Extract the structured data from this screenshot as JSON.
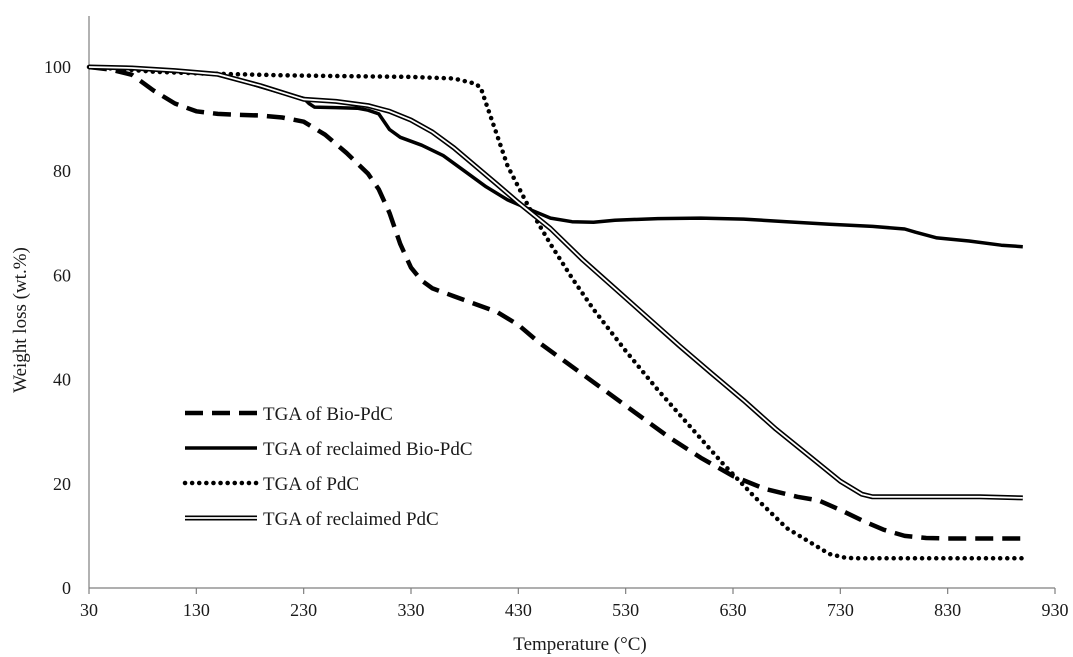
{
  "chart_data": {
    "type": "line",
    "title": "",
    "xlabel": "Temperature (°C)",
    "ylabel": "Weight loss (wt.%)",
    "xlim": [
      30,
      930
    ],
    "ylim": [
      0,
      110
    ],
    "x_ticks": [
      30,
      130,
      230,
      330,
      430,
      530,
      630,
      730,
      830,
      930
    ],
    "y_ticks": [
      0,
      20,
      40,
      60,
      80,
      100
    ],
    "x_tick_labels": [
      "30",
      "130",
      "230",
      "330",
      "430",
      "530",
      "630",
      "730",
      "830",
      "930"
    ],
    "y_tick_labels": [
      "0",
      "20",
      "40",
      "60",
      "80",
      "100"
    ],
    "grid": false,
    "legend_position": "lower-left",
    "series": [
      {
        "name": "TGA of Bio-PdC",
        "style": "dashed",
        "color": "#000000",
        "x": [
          30,
          50,
          70,
          90,
          110,
          130,
          150,
          170,
          190,
          210,
          230,
          250,
          270,
          290,
          300,
          310,
          320,
          330,
          340,
          350,
          370,
          390,
          410,
          430,
          450,
          480,
          510,
          540,
          570,
          600,
          630,
          660,
          690,
          710,
          730,
          750,
          770,
          790,
          810,
          830,
          860,
          900
        ],
        "y": [
          100,
          99.5,
          98.5,
          95.5,
          93,
          91.5,
          91,
          90.8,
          90.7,
          90.3,
          89.5,
          87,
          83.5,
          79.5,
          76.5,
          72,
          66,
          61.5,
          59,
          57.5,
          56,
          54.5,
          53,
          50.5,
          47,
          42.5,
          38,
          33.5,
          29,
          25,
          21.5,
          19,
          17.5,
          16.8,
          15,
          13,
          11.2,
          10,
          9.6,
          9.5,
          9.5,
          9.5
        ]
      },
      {
        "name": "TGA of reclaimed  Bio-PdC",
        "style": "solid",
        "color": "#000000",
        "x": [
          30,
          70,
          110,
          150,
          170,
          190,
          210,
          230,
          235,
          240,
          260,
          280,
          290,
          300,
          305,
          310,
          320,
          340,
          360,
          380,
          400,
          420,
          440,
          460,
          480,
          500,
          520,
          560,
          600,
          640,
          680,
          720,
          760,
          790,
          800,
          820,
          850,
          880,
          900
        ],
        "y": [
          100,
          99.8,
          99.2,
          98.5,
          97.5,
          96.2,
          95,
          94,
          93,
          92.3,
          92.2,
          92.1,
          91.7,
          91,
          89.5,
          88,
          86.5,
          85,
          83,
          80,
          77,
          74.5,
          72.7,
          71,
          70.3,
          70.2,
          70.6,
          70.9,
          71,
          70.8,
          70.3,
          69.8,
          69.4,
          68.9,
          68.3,
          67.2,
          66.6,
          65.8,
          65.5
        ]
      },
      {
        "name": "TGA of PdC",
        "style": "dotted",
        "color": "#000000",
        "x": [
          30,
          60,
          90,
          130,
          170,
          210,
          250,
          290,
          330,
          370,
          390,
          395,
          400,
          410,
          420,
          440,
          460,
          480,
          500,
          530,
          560,
          590,
          620,
          650,
          680,
          700,
          720,
          735,
          745,
          760,
          800,
          850,
          900
        ],
        "y": [
          100,
          99.6,
          99.1,
          98.8,
          98.6,
          98.4,
          98.3,
          98.2,
          98.1,
          97.8,
          96.8,
          96,
          93,
          87,
          81,
          73,
          66,
          59.5,
          53.5,
          45.5,
          38,
          31,
          24,
          17.5,
          11.5,
          9,
          6.5,
          5.8,
          5.7,
          5.7,
          5.7,
          5.7,
          5.7
        ]
      },
      {
        "name": "TGA of reclaimed PdC",
        "style": "double",
        "color": "#000000",
        "x": [
          30,
          70,
          110,
          150,
          190,
          230,
          260,
          290,
          310,
          330,
          350,
          370,
          390,
          410,
          430,
          460,
          490,
          520,
          550,
          580,
          610,
          640,
          670,
          700,
          730,
          750,
          760,
          780,
          820,
          860,
          900
        ],
        "y": [
          100,
          99.8,
          99.3,
          98.6,
          96.4,
          93.8,
          93.4,
          92.6,
          91.5,
          89.8,
          87.5,
          84.5,
          81,
          77.5,
          74,
          69,
          63,
          57.5,
          52,
          46.5,
          41.2,
          36,
          30.5,
          25.5,
          20.5,
          18,
          17.5,
          17.5,
          17.5,
          17.5,
          17.3
        ]
      }
    ]
  }
}
